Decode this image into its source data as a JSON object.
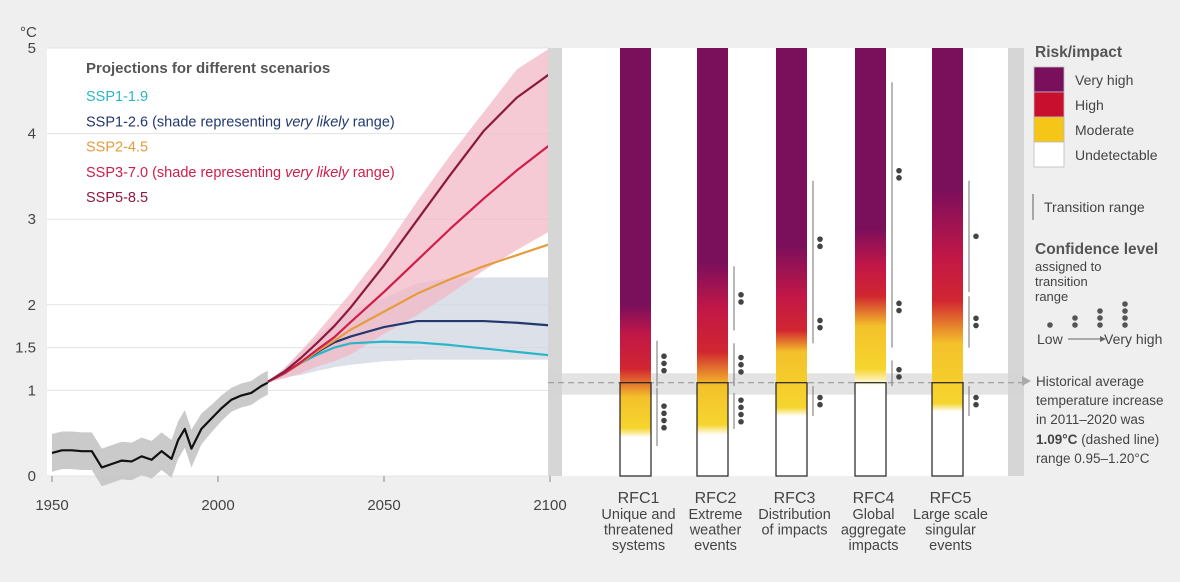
{
  "chart_data": [
    {
      "type": "line",
      "ylabel": "°C",
      "title": "Projections for different scenarios",
      "xlim": [
        1950,
        2100
      ],
      "ylim": [
        0,
        5
      ],
      "x_ticks": [
        "1950",
        "2000",
        "2050",
        "2100"
      ],
      "y_ticks": [
        "0",
        "1",
        "1.5",
        "2",
        "3",
        "4",
        "5"
      ],
      "legend": [
        {
          "label": "SSP1-1.9",
          "suffix": "",
          "italic": "",
          "tail": "",
          "color": "#2bb5c8"
        },
        {
          "label": "SSP1-2.6",
          "suffix": " (shade representing ",
          "italic": "very likely",
          "tail": " range)",
          "color": "#22386e"
        },
        {
          "label": "SSP2-4.5",
          "suffix": "",
          "italic": "",
          "tail": "",
          "color": "#e59c3d"
        },
        {
          "label": "SSP3-7.0",
          "suffix": " (shade representing ",
          "italic": "very likely",
          "tail": " range)",
          "color": "#cf1e4a"
        },
        {
          "label": "SSP5-8.5",
          "suffix": "",
          "italic": "",
          "tail": "",
          "color": "#8b1a3e"
        }
      ],
      "historical": {
        "name": "observed",
        "x": [
          1950,
          1953,
          1956,
          1959,
          1962,
          1965,
          1968,
          1971,
          1974,
          1977,
          1980,
          1983,
          1986,
          1988,
          1990,
          1992,
          1995,
          1998,
          2001,
          2004,
          2007,
          2010,
          2013,
          2015
        ],
        "y": [
          0.27,
          0.3,
          0.3,
          0.29,
          0.29,
          0.1,
          0.14,
          0.18,
          0.17,
          0.23,
          0.19,
          0.29,
          0.2,
          0.42,
          0.55,
          0.32,
          0.55,
          0.67,
          0.79,
          0.89,
          0.94,
          0.97,
          1.05,
          1.09
        ],
        "band": [
          0.22,
          0.22,
          0.22,
          0.22,
          0.22,
          0.22,
          0.22,
          0.22,
          0.22,
          0.22,
          0.22,
          0.22,
          0.22,
          0.22,
          0.22,
          0.22,
          0.18,
          0.16,
          0.15,
          0.14,
          0.14,
          0.14,
          0.14,
          0.14
        ]
      },
      "series": [
        {
          "name": "SSP1-1.9",
          "color": "#2bb5c8",
          "x": [
            2015,
            2020,
            2025,
            2030,
            2035,
            2040,
            2050,
            2060,
            2070,
            2080,
            2090,
            2100
          ],
          "y": [
            1.1,
            1.2,
            1.32,
            1.42,
            1.5,
            1.55,
            1.57,
            1.56,
            1.53,
            1.49,
            1.45,
            1.41
          ]
        },
        {
          "name": "SSP1-2.6",
          "color": "#22386e",
          "x": [
            2015,
            2020,
            2025,
            2030,
            2035,
            2040,
            2050,
            2060,
            2070,
            2080,
            2090,
            2100
          ],
          "y": [
            1.1,
            1.2,
            1.33,
            1.45,
            1.56,
            1.63,
            1.74,
            1.81,
            1.81,
            1.81,
            1.79,
            1.76
          ],
          "band_low": [
            1.1,
            1.15,
            1.18,
            1.23,
            1.27,
            1.3,
            1.34,
            1.36,
            1.36,
            1.36,
            1.36,
            1.36
          ],
          "band_high": [
            1.1,
            1.26,
            1.46,
            1.63,
            1.8,
            1.93,
            2.08,
            2.25,
            2.31,
            2.32,
            2.32,
            2.32
          ]
        },
        {
          "name": "SSP2-4.5",
          "color": "#e59c3d",
          "x": [
            2015,
            2020,
            2025,
            2030,
            2035,
            2040,
            2050,
            2060,
            2070,
            2080,
            2090,
            2100
          ],
          "y": [
            1.1,
            1.2,
            1.32,
            1.46,
            1.58,
            1.71,
            1.92,
            2.13,
            2.3,
            2.45,
            2.58,
            2.71
          ]
        },
        {
          "name": "SSP3-7.0",
          "color": "#cf1e4a",
          "x": [
            2015,
            2020,
            2025,
            2030,
            2035,
            2040,
            2050,
            2060,
            2070,
            2080,
            2090,
            2100
          ],
          "y": [
            1.1,
            1.2,
            1.33,
            1.48,
            1.62,
            1.8,
            2.15,
            2.52,
            2.89,
            3.24,
            3.57,
            3.87
          ],
          "band_low": [
            1.1,
            1.14,
            1.2,
            1.28,
            1.34,
            1.42,
            1.66,
            1.88,
            2.13,
            2.4,
            2.64,
            2.86
          ],
          "band_high": [
            1.1,
            1.26,
            1.46,
            1.68,
            1.91,
            2.14,
            2.64,
            3.21,
            3.75,
            4.25,
            4.75,
            5.0
          ]
        },
        {
          "name": "SSP5-8.5",
          "color": "#8b1a3e",
          "x": [
            2015,
            2020,
            2025,
            2030,
            2035,
            2040,
            2050,
            2060,
            2070,
            2080,
            2090,
            2100
          ],
          "y": [
            1.1,
            1.22,
            1.38,
            1.56,
            1.75,
            1.97,
            2.46,
            2.99,
            3.52,
            4.03,
            4.42,
            4.7
          ]
        }
      ]
    },
    {
      "type": "heatmap",
      "ylim": [
        0,
        5
      ],
      "columns": [
        {
          "id": "RFC1",
          "label": [
            "Unique and",
            "threatened",
            "systems"
          ],
          "stops": [
            [
              0,
              "#ffffff"
            ],
            [
              0.45,
              "#ffffff"
            ],
            [
              0.56,
              "#f6d52e"
            ],
            [
              0.92,
              "#f4c12b"
            ],
            [
              1.25,
              "#d12630"
            ],
            [
              1.65,
              "#c21747"
            ],
            [
              2.0,
              "#7a0f5c"
            ],
            [
              5,
              "#7a0f5c"
            ]
          ],
          "transitions": [
            {
              "from": 0.35,
              "to": 1.03,
              "dots": 4
            },
            {
              "from": 1.05,
              "to": 1.58,
              "dots": 3
            }
          ]
        },
        {
          "id": "RFC2",
          "label": [
            "Extreme",
            "weather",
            "events"
          ],
          "stops": [
            [
              0,
              "#ffffff"
            ],
            [
              0.48,
              "#ffffff"
            ],
            [
              0.6,
              "#f6d52e"
            ],
            [
              1.05,
              "#f4c12b"
            ],
            [
              1.45,
              "#d12630"
            ],
            [
              1.95,
              "#c21747"
            ],
            [
              2.5,
              "#7a0f5c"
            ],
            [
              5,
              "#7a0f5c"
            ]
          ],
          "transitions": [
            {
              "from": 0.55,
              "to": 0.97,
              "dots": 4
            },
            {
              "from": 1.05,
              "to": 1.55,
              "dots": 3
            },
            {
              "from": 1.7,
              "to": 2.45,
              "dots": 2
            }
          ]
        },
        {
          "id": "RFC3",
          "label": [
            "Distribution",
            "of impacts"
          ],
          "stops": [
            [
              0,
              "#ffffff"
            ],
            [
              0.7,
              "#ffffff"
            ],
            [
              0.8,
              "#f6d52e"
            ],
            [
              1.45,
              "#f4c12b"
            ],
            [
              1.7,
              "#d12630"
            ],
            [
              2.1,
              "#c21747"
            ],
            [
              2.7,
              "#7a0f5c"
            ],
            [
              5,
              "#7a0f5c"
            ]
          ],
          "transitions": [
            {
              "from": 0.7,
              "to": 1.05,
              "dots": 2
            },
            {
              "from": 1.55,
              "to": 2.0,
              "dots": 2
            },
            {
              "from": 2.0,
              "to": 3.45,
              "dots": 2
            }
          ]
        },
        {
          "id": "RFC4",
          "label": [
            "Global",
            "aggregate",
            "impacts"
          ],
          "stops": [
            [
              0,
              "#ffffff"
            ],
            [
              1.05,
              "#ffffff"
            ],
            [
              1.25,
              "#f6d52e"
            ],
            [
              1.75,
              "#f4c12b"
            ],
            [
              2.1,
              "#d12630"
            ],
            [
              2.45,
              "#c21747"
            ],
            [
              2.9,
              "#7a0f5c"
            ],
            [
              5,
              "#7a0f5c"
            ]
          ],
          "transitions": [
            {
              "from": 1.05,
              "to": 1.35,
              "dots": 2
            },
            {
              "from": 1.5,
              "to": 2.45,
              "dots": 2
            },
            {
              "from": 2.45,
              "to": 4.6,
              "dots": 2
            }
          ]
        },
        {
          "id": "RFC5",
          "label": [
            "Large scale",
            "singular",
            "events"
          ],
          "stops": [
            [
              0,
              "#ffffff"
            ],
            [
              0.75,
              "#ffffff"
            ],
            [
              0.85,
              "#f6d52e"
            ],
            [
              1.55,
              "#f4c12b"
            ],
            [
              2.05,
              "#d12630"
            ],
            [
              2.55,
              "#c21747"
            ],
            [
              3.35,
              "#7a0f5c"
            ],
            [
              5,
              "#7a0f5c"
            ]
          ],
          "transitions": [
            {
              "from": 0.7,
              "to": 1.05,
              "dots": 2
            },
            {
              "from": 1.5,
              "to": 2.1,
              "dots": 2
            },
            {
              "from": 2.15,
              "to": 3.45,
              "dots": 1
            }
          ]
        }
      ],
      "historical_line": 1.09,
      "historical_range": [
        0.95,
        1.2
      ]
    }
  ],
  "risk_key": {
    "title": "Risk/impact",
    "levels": [
      {
        "label": "Very high",
        "color": "#7a0f5c"
      },
      {
        "label": "High",
        "color": "#c8102e"
      },
      {
        "label": "Moderate",
        "color": "#f5c518"
      },
      {
        "label": "Undetectable",
        "color": "#ffffff"
      }
    ],
    "transition_label": "Transition range",
    "confidence_title": "Confidence level",
    "confidence_sub": [
      "assigned to",
      "transition",
      "range"
    ],
    "confidence_low": "Low",
    "confidence_high": "Very high",
    "historical_note": [
      "Historical average",
      "temperature increase",
      "in 2011–2020 was"
    ],
    "historical_value": "1.09°C",
    "historical_value_tail": " (dashed line)",
    "historical_range": "range 0.95–1.20°C"
  }
}
